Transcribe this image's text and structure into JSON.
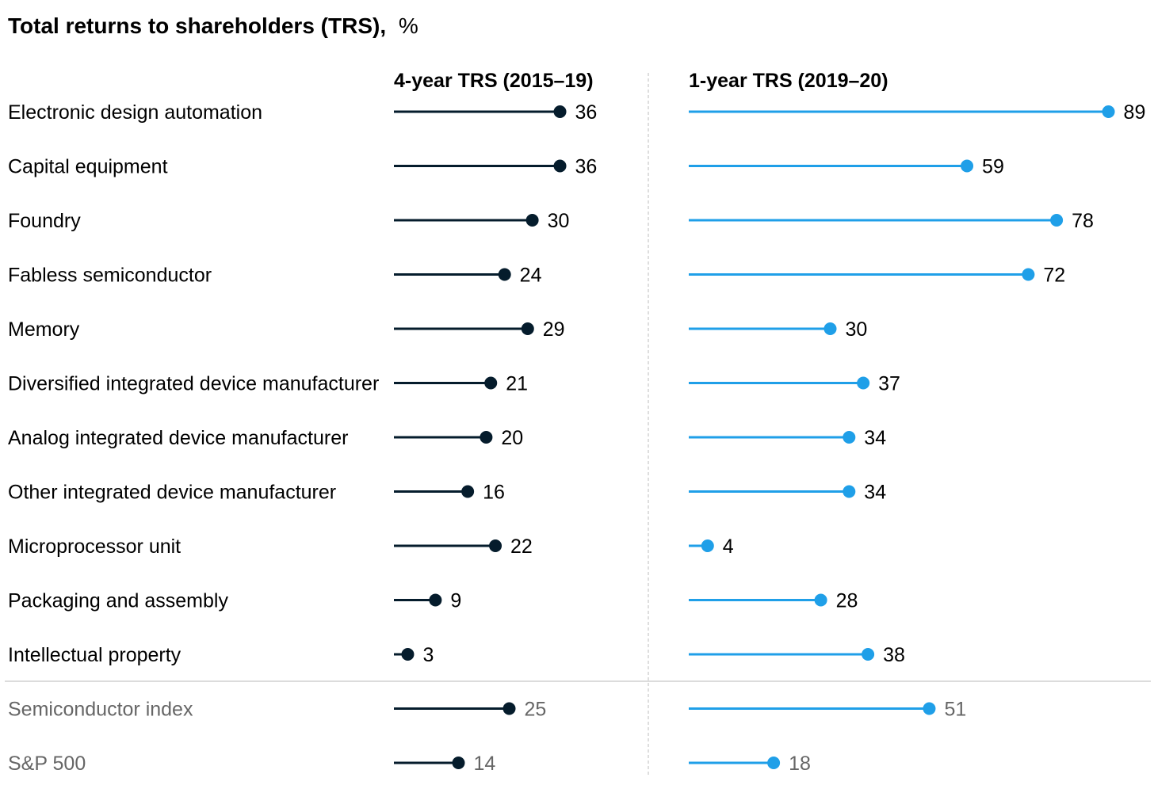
{
  "chart_data": {
    "type": "lollipop",
    "title": "Total returns to shareholders (TRS),",
    "title_unit": "%",
    "panels": [
      {
        "name": "4-year TRS (2015–19)",
        "color": "#051c2c"
      },
      {
        "name": "1-year TRS (2019–20)",
        "color": "#1f9fe8"
      }
    ],
    "categories": [
      "Electronic design automation",
      "Capital equipment",
      "Foundry",
      "Fabless semiconductor",
      "Memory",
      "Diversified integrated device manufacturer",
      "Analog integrated device manufacturer",
      "Other integrated device manufacturer",
      "Microprocessor unit",
      "Packaging and assembly",
      "Intellectual property",
      "Semiconductor index",
      "S&P 500"
    ],
    "benchmark_categories": [
      "Semiconductor index",
      "S&P 500"
    ],
    "series": [
      {
        "name": "4-year TRS (2015–19)",
        "values": [
          36,
          36,
          30,
          24,
          29,
          21,
          20,
          16,
          22,
          9,
          3,
          25,
          14
        ]
      },
      {
        "name": "1-year TRS (2019–20)",
        "values": [
          89,
          59,
          78,
          72,
          30,
          37,
          34,
          34,
          4,
          28,
          38,
          51,
          18
        ]
      }
    ],
    "text_color": "#000000",
    "benchmark_text_color": "#666666",
    "divider_color": "#c8c8c8"
  }
}
